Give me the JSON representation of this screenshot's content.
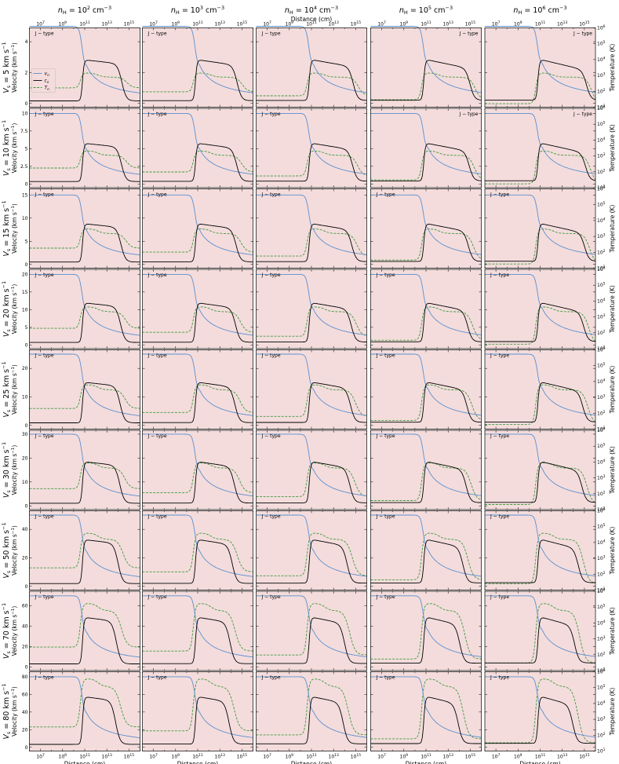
{
  "columns": [
    "nH = 10^2 cm^-3",
    "nH = 10^3 cm^-3",
    "nH = 10^4 cm^-3",
    "nH = 10^5 cm^-3",
    "nH = 10^6 cm^-3"
  ],
  "column_labels": [
    {
      "base": "n",
      "sub": "H",
      "eq": " = 10",
      "exp": "2",
      "unit": " cm",
      "unit_exp": "−3"
    },
    {
      "base": "n",
      "sub": "H",
      "eq": " = 10",
      "exp": "3",
      "unit": " cm",
      "unit_exp": "−3"
    },
    {
      "base": "n",
      "sub": "H",
      "eq": " = 10",
      "exp": "4",
      "unit": " cm",
      "unit_exp": "−3"
    },
    {
      "base": "n",
      "sub": "H",
      "eq": " = 10",
      "exp": "5",
      "unit": " cm",
      "unit_exp": "−3"
    },
    {
      "base": "n",
      "sub": "H",
      "eq": " = 10",
      "exp": "6",
      "unit": " cm",
      "unit_exp": "−3"
    }
  ],
  "rows": [
    {
      "label": "Vs = 5 km s^-1",
      "vs": 5,
      "vmax": 4.8,
      "yticks": [
        0,
        2,
        4
      ]
    },
    {
      "label": "Vs = 10 km s^-1",
      "vs": 10,
      "vmax": 10.5,
      "yticks": [
        0.0,
        2.5,
        5.0,
        7.5,
        10.0
      ]
    },
    {
      "label": "Vs = 15 km s^-1",
      "vs": 15,
      "vmax": 16,
      "yticks": [
        0,
        5,
        10,
        15
      ]
    },
    {
      "label": "Vs = 20 km s^-1",
      "vs": 20,
      "vmax": 21,
      "yticks": [
        0,
        5,
        10,
        15,
        20
      ]
    },
    {
      "label": "Vs = 25 km s^-1",
      "vs": 25,
      "vmax": 26,
      "yticks": [
        0,
        10,
        20
      ]
    },
    {
      "label": "Vs = 30 km s^-1",
      "vs": 30,
      "vmax": 31,
      "yticks": [
        0,
        10,
        20,
        30
      ]
    },
    {
      "label": "Vs = 50 km s^-1",
      "vs": 50,
      "vmax": 52,
      "yticks": [
        0,
        20,
        40
      ]
    },
    {
      "label": "Vs = 70 km s^-1",
      "vs": 70,
      "vmax": 73,
      "yticks": [
        0,
        20,
        40,
        60
      ]
    },
    {
      "label": "Vs = 80 km s^-1",
      "vs": 80,
      "vmax": 84,
      "yticks": [
        0,
        20,
        40,
        60,
        80
      ]
    }
  ],
  "text": {
    "shock_type": "J − type",
    "ylabel_left": "Velocity (km s^-1)",
    "ylabel_right": "Temperature (K)",
    "xlabel": "Distance (cm)",
    "legend": [
      "v_n",
      "c_s",
      "T_n"
    ]
  },
  "chart_data": {
    "type": "line",
    "layout": "grid 9 rows x 5 columns",
    "x_scale": "log",
    "xlim": [
      1000000.0,
      1e+16
    ],
    "xticks": [
      "10^7",
      "10^9",
      "10^11",
      "10^13",
      "10^15"
    ],
    "y2_scale": "log",
    "y2lim": [
      10,
      1000000.0
    ],
    "y2ticks": [
      "10^1",
      "10^2",
      "10^3",
      "10^4",
      "10^5",
      "10^6"
    ],
    "legend_placement": "left, top-left panel",
    "series": [
      {
        "name": "v_n",
        "color": "#5a8fd0",
        "style": "solid",
        "axis": "left"
      },
      {
        "name": "c_s",
        "color": "#000000",
        "style": "solid",
        "axis": "left"
      },
      {
        "name": "T_n",
        "color": "#3c9a3c",
        "style": "dashed",
        "axis": "right"
      }
    ],
    "background_color": "#f4dcdc",
    "shock_type_all_panels": "J − type"
  }
}
